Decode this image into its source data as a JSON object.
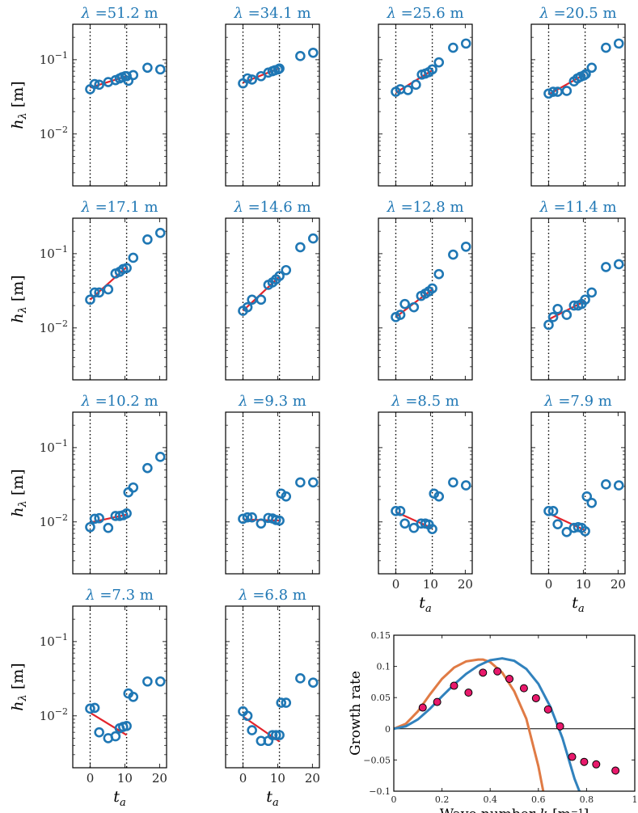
{
  "chart_data": [
    {
      "type": "scatter",
      "title": "λ =51.2 m",
      "ylabel": "h_λ [m]",
      "xlabel": "",
      "xlim": [
        -5,
        22
      ],
      "ylim": [
        0.002,
        0.3
      ],
      "yscale": "log",
      "vlines": [
        0,
        10.5
      ],
      "points": [
        [
          0,
          0.04
        ],
        [
          1.3,
          0.047
        ],
        [
          2.6,
          0.046
        ],
        [
          5.2,
          0.05
        ],
        [
          7.3,
          0.053
        ],
        [
          8.5,
          0.056
        ],
        [
          9.2,
          0.058
        ],
        [
          10.1,
          0.06
        ],
        [
          10.5,
          0.06
        ],
        [
          11,
          0.052
        ],
        [
          12.4,
          0.062
        ],
        [
          16.5,
          0.078
        ],
        [
          20.2,
          0.074
        ]
      ],
      "fit": [
        [
          0,
          0.042
        ],
        [
          10.5,
          0.06
        ]
      ]
    },
    {
      "type": "scatter",
      "title": "λ =34.1 m",
      "ylabel": "",
      "xlabel": "",
      "xlim": [
        -5,
        22
      ],
      "ylim": [
        0.002,
        0.3
      ],
      "yscale": "log",
      "vlines": [
        0,
        10.5
      ],
      "points": [
        [
          0,
          0.048
        ],
        [
          1.3,
          0.056
        ],
        [
          2.6,
          0.054
        ],
        [
          5.2,
          0.06
        ],
        [
          7.3,
          0.067
        ],
        [
          8.5,
          0.07
        ],
        [
          9.2,
          0.072
        ],
        [
          10.1,
          0.074
        ],
        [
          10.5,
          0.076
        ],
        [
          16.5,
          0.112
        ],
        [
          20.2,
          0.124
        ]
      ],
      "fit": [
        [
          0,
          0.049
        ],
        [
          10.5,
          0.077
        ]
      ]
    },
    {
      "type": "scatter",
      "title": "λ =25.6 m",
      "ylabel": "",
      "xlabel": "",
      "xlim": [
        -5,
        22
      ],
      "ylim": [
        0.002,
        0.3
      ],
      "yscale": "log",
      "vlines": [
        0,
        10.5
      ],
      "points": [
        [
          0,
          0.037
        ],
        [
          1.3,
          0.04
        ],
        [
          3.5,
          0.039
        ],
        [
          5.8,
          0.046
        ],
        [
          7.5,
          0.063
        ],
        [
          8.5,
          0.065
        ],
        [
          9.5,
          0.068
        ],
        [
          10.5,
          0.074
        ],
        [
          12.4,
          0.092
        ],
        [
          16.5,
          0.145
        ],
        [
          20.2,
          0.165
        ]
      ],
      "fit": [
        [
          0,
          0.036
        ],
        [
          10.5,
          0.072
        ]
      ]
    },
    {
      "type": "scatter",
      "title": "λ =20.5 m",
      "ylabel": "",
      "xlabel": "",
      "xlim": [
        -5,
        22
      ],
      "ylim": [
        0.002,
        0.3
      ],
      "yscale": "log",
      "vlines": [
        0,
        10.5
      ],
      "points": [
        [
          0,
          0.035
        ],
        [
          1.3,
          0.037
        ],
        [
          2.6,
          0.037
        ],
        [
          5.2,
          0.038
        ],
        [
          7.3,
          0.051
        ],
        [
          8.3,
          0.056
        ],
        [
          9.2,
          0.059
        ],
        [
          10.1,
          0.061
        ],
        [
          10.7,
          0.064
        ],
        [
          12.4,
          0.078
        ],
        [
          16.5,
          0.145
        ],
        [
          20.2,
          0.165
        ]
      ],
      "fit": [
        [
          0,
          0.034
        ],
        [
          10.5,
          0.064
        ]
      ]
    },
    {
      "type": "scatter",
      "title": "λ =17.1 m",
      "ylabel": "h_λ [m]",
      "xlabel": "",
      "xlim": [
        -5,
        22
      ],
      "ylim": [
        0.002,
        0.3
      ],
      "yscale": "log",
      "vlines": [
        0,
        10.5
      ],
      "points": [
        [
          0,
          0.024
        ],
        [
          1.3,
          0.03
        ],
        [
          2.6,
          0.03
        ],
        [
          5.2,
          0.033
        ],
        [
          7.3,
          0.054
        ],
        [
          8.5,
          0.057
        ],
        [
          9.5,
          0.062
        ],
        [
          10.5,
          0.064
        ],
        [
          12.4,
          0.088
        ],
        [
          16.5,
          0.155
        ],
        [
          20.2,
          0.19
        ]
      ],
      "fit": [
        [
          0,
          0.024
        ],
        [
          10.5,
          0.066
        ]
      ]
    },
    {
      "type": "scatter",
      "title": "λ =14.6 m",
      "ylabel": "",
      "xlabel": "",
      "xlim": [
        -5,
        22
      ],
      "ylim": [
        0.002,
        0.3
      ],
      "yscale": "log",
      "vlines": [
        0,
        10.5
      ],
      "points": [
        [
          0,
          0.017
        ],
        [
          1.3,
          0.019
        ],
        [
          2.6,
          0.024
        ],
        [
          5.2,
          0.024
        ],
        [
          7.3,
          0.038
        ],
        [
          8.5,
          0.041
        ],
        [
          9.5,
          0.045
        ],
        [
          10.5,
          0.05
        ],
        [
          12.4,
          0.06
        ],
        [
          16.5,
          0.122
        ],
        [
          20.2,
          0.16
        ]
      ],
      "fit": [
        [
          0,
          0.017
        ],
        [
          10.5,
          0.049
        ]
      ]
    },
    {
      "type": "scatter",
      "title": "λ =12.8 m",
      "ylabel": "",
      "xlabel": "",
      "xlim": [
        -5,
        22
      ],
      "ylim": [
        0.002,
        0.3
      ],
      "yscale": "log",
      "vlines": [
        0,
        10.5
      ],
      "points": [
        [
          0,
          0.014
        ],
        [
          1.3,
          0.015
        ],
        [
          2.6,
          0.021
        ],
        [
          5.2,
          0.019
        ],
        [
          7.3,
          0.027
        ],
        [
          8.5,
          0.029
        ],
        [
          9.5,
          0.031
        ],
        [
          10.5,
          0.034
        ],
        [
          12.4,
          0.053
        ],
        [
          16.5,
          0.097
        ],
        [
          20.2,
          0.124
        ]
      ],
      "fit": [
        [
          0,
          0.014
        ],
        [
          10.5,
          0.033
        ]
      ]
    },
    {
      "type": "scatter",
      "title": "λ =11.4 m",
      "ylabel": "",
      "xlabel": "",
      "xlim": [
        -5,
        22
      ],
      "ylim": [
        0.002,
        0.3
      ],
      "yscale": "log",
      "vlines": [
        0,
        10.5
      ],
      "points": [
        [
          0,
          0.011
        ],
        [
          1.3,
          0.014
        ],
        [
          2.6,
          0.018
        ],
        [
          5.2,
          0.015
        ],
        [
          7.3,
          0.02
        ],
        [
          8.5,
          0.02
        ],
        [
          9.5,
          0.021
        ],
        [
          10.5,
          0.024
        ],
        [
          12.4,
          0.03
        ],
        [
          16.5,
          0.066
        ],
        [
          20.2,
          0.072
        ]
      ],
      "fit": [
        [
          0,
          0.013
        ],
        [
          10.5,
          0.023
        ]
      ]
    },
    {
      "type": "scatter",
      "title": "λ =10.2 m",
      "ylabel": "h_λ [m]",
      "xlabel": "",
      "xlim": [
        -5,
        22
      ],
      "ylim": [
        0.002,
        0.3
      ],
      "yscale": "log",
      "vlines": [
        0,
        10.5
      ],
      "points": [
        [
          0,
          0.0085
        ],
        [
          1.3,
          0.011
        ],
        [
          2.6,
          0.0112
        ],
        [
          5.2,
          0.0083
        ],
        [
          7.3,
          0.012
        ],
        [
          8.5,
          0.012
        ],
        [
          9.5,
          0.0123
        ],
        [
          10.5,
          0.013
        ],
        [
          11,
          0.025
        ],
        [
          12.4,
          0.029
        ],
        [
          16.5,
          0.053
        ],
        [
          20.2,
          0.075
        ]
      ],
      "fit": [
        [
          0,
          0.0098
        ],
        [
          10.5,
          0.0125
        ]
      ]
    },
    {
      "type": "scatter",
      "title": "λ =9.3 m",
      "ylabel": "",
      "xlabel": "",
      "xlim": [
        -5,
        22
      ],
      "ylim": [
        0.002,
        0.3
      ],
      "yscale": "log",
      "vlines": [
        0,
        10.5
      ],
      "points": [
        [
          0,
          0.011
        ],
        [
          1.3,
          0.0115
        ],
        [
          2.6,
          0.0115
        ],
        [
          5.2,
          0.0095
        ],
        [
          7.3,
          0.0113
        ],
        [
          8.5,
          0.0111
        ],
        [
          9.5,
          0.0106
        ],
        [
          10.5,
          0.0104
        ],
        [
          11,
          0.024
        ],
        [
          12.4,
          0.022
        ],
        [
          16.5,
          0.034
        ],
        [
          20.2,
          0.034
        ]
      ],
      "fit": [
        [
          0,
          0.0108
        ],
        [
          10.5,
          0.0104
        ]
      ]
    },
    {
      "type": "scatter",
      "title": "λ =8.5 m",
      "ylabel": "",
      "xlabel": "t_a",
      "xlim": [
        -5,
        22
      ],
      "ylim": [
        0.002,
        0.3
      ],
      "yscale": "log",
      "vlines": [
        0,
        10.5
      ],
      "points": [
        [
          0,
          0.014
        ],
        [
          1.3,
          0.014
        ],
        [
          2.6,
          0.0095
        ],
        [
          5.2,
          0.0083
        ],
        [
          7.3,
          0.0095
        ],
        [
          8.5,
          0.0095
        ],
        [
          9.5,
          0.0092
        ],
        [
          10.5,
          0.008
        ],
        [
          11,
          0.024
        ],
        [
          12.4,
          0.022
        ],
        [
          16.5,
          0.034
        ],
        [
          20.2,
          0.031
        ]
      ],
      "fit": [
        [
          0,
          0.0136
        ],
        [
          10.5,
          0.0082
        ]
      ]
    },
    {
      "type": "scatter",
      "title": "λ =7.9 m",
      "ylabel": "",
      "xlabel": "t_a",
      "xlim": [
        -5,
        22
      ],
      "ylim": [
        0.002,
        0.3
      ],
      "yscale": "log",
      "vlines": [
        0,
        10.5
      ],
      "points": [
        [
          0,
          0.014
        ],
        [
          1.3,
          0.014
        ],
        [
          2.6,
          0.0093
        ],
        [
          5.2,
          0.0073
        ],
        [
          7.3,
          0.0083
        ],
        [
          8.5,
          0.0085
        ],
        [
          9.5,
          0.0083
        ],
        [
          10.5,
          0.0075
        ],
        [
          11,
          0.022
        ],
        [
          12.4,
          0.018
        ],
        [
          16.5,
          0.032
        ],
        [
          20.2,
          0.031
        ]
      ],
      "fit": [
        [
          0,
          0.013
        ],
        [
          10.5,
          0.0077
        ]
      ]
    },
    {
      "type": "scatter",
      "title": "λ =7.3 m",
      "ylabel": "h_λ [m]",
      "xlabel": "t_a",
      "xlim": [
        -5,
        22
      ],
      "ylim": [
        0.002,
        0.3
      ],
      "yscale": "log",
      "vlines": [
        0,
        10.5
      ],
      "points": [
        [
          0,
          0.0125
        ],
        [
          1.3,
          0.0128
        ],
        [
          2.6,
          0.006
        ],
        [
          5.2,
          0.005
        ],
        [
          7.3,
          0.0053
        ],
        [
          8.5,
          0.0068
        ],
        [
          9.5,
          0.0071
        ],
        [
          10.5,
          0.0073
        ],
        [
          11,
          0.02
        ],
        [
          12.4,
          0.018
        ],
        [
          16.5,
          0.029
        ],
        [
          20.2,
          0.029
        ]
      ],
      "fit": [
        [
          0,
          0.011
        ],
        [
          10.5,
          0.0055
        ]
      ]
    },
    {
      "type": "scatter",
      "title": "λ =6.8 m",
      "ylabel": "",
      "xlabel": "t_a",
      "xlim": [
        -5,
        22
      ],
      "ylim": [
        0.002,
        0.3
      ],
      "yscale": "log",
      "vlines": [
        0,
        10.5
      ],
      "points": [
        [
          0,
          0.0115
        ],
        [
          1.3,
          0.01
        ],
        [
          2.6,
          0.0064
        ],
        [
          5.2,
          0.0046
        ],
        [
          7.3,
          0.0046
        ],
        [
          8.5,
          0.0055
        ],
        [
          9.5,
          0.0055
        ],
        [
          10.5,
          0.0055
        ],
        [
          11,
          0.015
        ],
        [
          12.4,
          0.015
        ],
        [
          16.5,
          0.032
        ],
        [
          20.2,
          0.028
        ]
      ],
      "fit": [
        [
          0,
          0.0098
        ],
        [
          10.5,
          0.0045
        ]
      ]
    },
    {
      "type": "line",
      "xlabel": "Wave number k [m⁻¹]",
      "ylabel": "Growth rate",
      "xlim": [
        0,
        1
      ],
      "ylim": [
        -0.1,
        0.15
      ],
      "xticks": [
        0,
        0.2,
        0.4,
        0.6,
        0.8,
        1
      ],
      "yticks": [
        -0.1,
        -0.05,
        0,
        0.05,
        0.1,
        0.15
      ],
      "series": [
        {
          "color": "#e07b45",
          "x": [
            0,
            0.05,
            0.1,
            0.15,
            0.2,
            0.25,
            0.3,
            0.35,
            0.37,
            0.4,
            0.45,
            0.5,
            0.55,
            0.6,
            0.62
          ],
          "y": [
            0,
            0.008,
            0.028,
            0.055,
            0.08,
            0.098,
            0.108,
            0.111,
            0.111,
            0.107,
            0.09,
            0.06,
            0.016,
            -0.06,
            -0.1
          ]
        },
        {
          "color": "#3182bd",
          "x": [
            0,
            0.05,
            0.1,
            0.15,
            0.2,
            0.25,
            0.3,
            0.35,
            0.4,
            0.45,
            0.5,
            0.55,
            0.6,
            0.65,
            0.7,
            0.75,
            0.77
          ],
          "y": [
            0,
            0.004,
            0.015,
            0.032,
            0.052,
            0.071,
            0.088,
            0.101,
            0.11,
            0.113,
            0.109,
            0.096,
            0.072,
            0.035,
            -0.015,
            -0.08,
            -0.1
          ]
        }
      ],
      "points": {
        "color": "#e8196b",
        "x": [
          0.12,
          0.18,
          0.25,
          0.31,
          0.37,
          0.43,
          0.48,
          0.54,
          0.59,
          0.64,
          0.69,
          0.74,
          0.79,
          0.84,
          0.92
        ],
        "y": [
          0.034,
          0.043,
          0.069,
          0.058,
          0.09,
          0.092,
          0.08,
          0.065,
          0.049,
          0.031,
          0.004,
          -0.045,
          -0.053,
          -0.057,
          -0.067
        ]
      },
      "zero_line": true
    }
  ]
}
